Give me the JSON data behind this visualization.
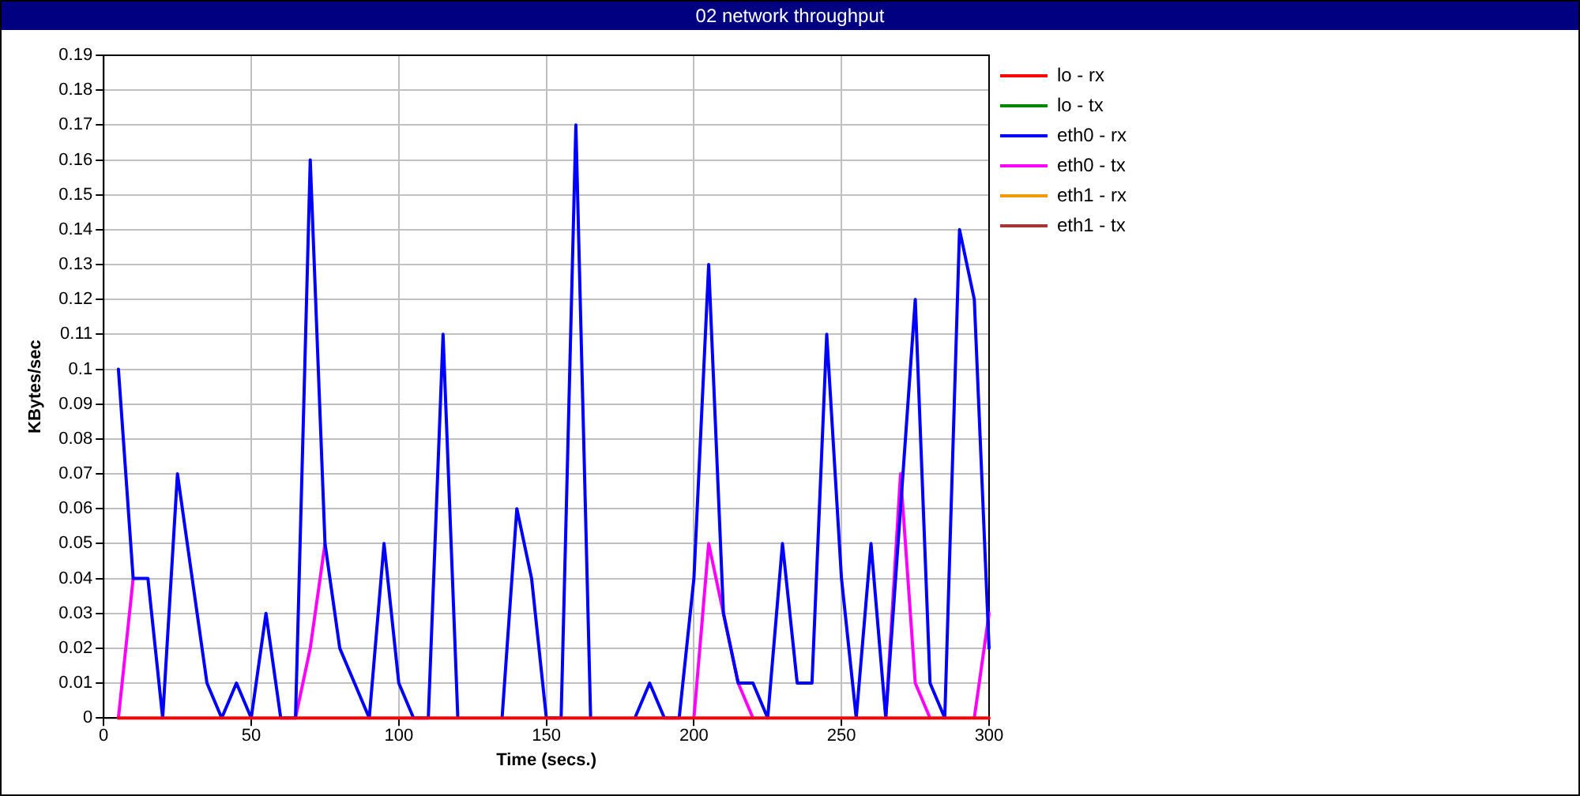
{
  "chart_data": {
    "type": "line",
    "title": "02 network throughput",
    "xlabel": "Time (secs.)",
    "ylabel": "KBytes/sec",
    "x": [
      5,
      10,
      15,
      20,
      25,
      30,
      35,
      40,
      45,
      50,
      55,
      60,
      65,
      70,
      75,
      80,
      85,
      90,
      95,
      100,
      105,
      110,
      115,
      120,
      125,
      130,
      135,
      140,
      145,
      150,
      155,
      160,
      165,
      170,
      175,
      180,
      185,
      190,
      195,
      200,
      205,
      210,
      215,
      220,
      225,
      230,
      235,
      240,
      245,
      250,
      255,
      260,
      265,
      270,
      275,
      280,
      285,
      290,
      295,
      300
    ],
    "series": [
      {
        "name": "lo - rx",
        "color": "#ff0000",
        "values": [
          0,
          0,
          0,
          0,
          0,
          0,
          0,
          0,
          0,
          0,
          0,
          0,
          0,
          0,
          0,
          0,
          0,
          0,
          0,
          0,
          0,
          0,
          0,
          0,
          0,
          0,
          0,
          0,
          0,
          0,
          0,
          0,
          0,
          0,
          0,
          0,
          0,
          0,
          0,
          0,
          0,
          0,
          0,
          0,
          0,
          0,
          0,
          0,
          0,
          0,
          0,
          0,
          0,
          0,
          0,
          0,
          0,
          0,
          0,
          0
        ]
      },
      {
        "name": "lo - tx",
        "color": "#008800",
        "values": [
          null,
          null,
          null,
          null,
          null,
          null,
          null,
          null,
          null,
          null,
          null,
          null,
          null,
          null,
          null,
          null,
          null,
          null,
          null,
          null,
          null,
          null,
          null,
          null,
          null,
          null,
          null,
          null,
          null,
          null,
          null,
          null,
          null,
          null,
          null,
          null,
          null,
          null,
          null,
          null,
          null,
          null,
          null,
          null,
          null,
          null,
          null,
          null,
          null,
          null,
          null,
          null,
          null,
          null,
          null,
          null,
          null,
          null,
          null,
          null
        ]
      },
      {
        "name": "eth0 - rx",
        "color": "#0000ff",
        "values": [
          0.1,
          0.04,
          0.04,
          0,
          0.07,
          0.04,
          0.01,
          0,
          0.01,
          0,
          0.03,
          0,
          0,
          0.16,
          0.05,
          0.02,
          0.01,
          0,
          0.05,
          0.01,
          0,
          0,
          0.11,
          0,
          null,
          null,
          0,
          0.06,
          0.04,
          0,
          0,
          0.17,
          0,
          null,
          null,
          0,
          0.01,
          0,
          0,
          0.04,
          0.13,
          0.03,
          0.01,
          0.01,
          0,
          0.05,
          0.01,
          0.01,
          0.11,
          0.04,
          0,
          0.05,
          0,
          0.06,
          0.12,
          0.01,
          0,
          0.14,
          0.12,
          0.02
        ]
      },
      {
        "name": "eth0 - tx",
        "color": "#ff00ff",
        "values": [
          0,
          0.04,
          null,
          null,
          null,
          null,
          null,
          null,
          null,
          null,
          null,
          null,
          0,
          0.02,
          0.05,
          null,
          null,
          null,
          null,
          null,
          null,
          null,
          null,
          null,
          null,
          null,
          null,
          null,
          null,
          null,
          null,
          null,
          null,
          null,
          null,
          null,
          null,
          null,
          null,
          0,
          0.05,
          0.03,
          0.01,
          0,
          null,
          null,
          null,
          null,
          null,
          null,
          null,
          null,
          0,
          0.07,
          0.01,
          0,
          null,
          null,
          0,
          0.03
        ]
      },
      {
        "name": "eth1 - rx",
        "color": "#ee9900",
        "values": [
          null,
          null,
          null,
          null,
          null,
          null,
          null,
          null,
          null,
          null,
          null,
          null,
          null,
          null,
          null,
          null,
          null,
          null,
          null,
          null,
          null,
          null,
          null,
          null,
          null,
          null,
          null,
          null,
          null,
          null,
          null,
          null,
          null,
          null,
          null,
          null,
          null,
          null,
          null,
          null,
          null,
          null,
          null,
          null,
          null,
          null,
          null,
          null,
          null,
          null,
          null,
          null,
          null,
          null,
          null,
          null,
          null,
          null,
          null,
          null
        ]
      },
      {
        "name": "eth1 - tx",
        "color": "#aa3333",
        "values": [
          null,
          null,
          null,
          null,
          null,
          null,
          null,
          null,
          null,
          null,
          null,
          null,
          null,
          null,
          null,
          null,
          null,
          null,
          null,
          null,
          null,
          null,
          null,
          null,
          null,
          null,
          null,
          null,
          null,
          null,
          null,
          null,
          null,
          null,
          null,
          null,
          null,
          null,
          null,
          null,
          null,
          null,
          null,
          null,
          null,
          null,
          null,
          null,
          null,
          null,
          null,
          null,
          null,
          null,
          null,
          null,
          null,
          null,
          null,
          null
        ]
      }
    ],
    "xlim": [
      0,
      300
    ],
    "xticks": [
      0,
      50,
      100,
      150,
      200,
      250,
      300
    ],
    "ylim": [
      0,
      0.19
    ],
    "yticks": [
      0,
      0.01,
      0.02,
      0.03,
      0.04,
      0.05,
      0.06,
      0.07,
      0.08,
      0.09,
      0.1,
      0.11,
      0.12,
      0.13,
      0.14,
      0.15,
      0.16,
      0.17,
      0.18,
      0.19
    ],
    "grid": true,
    "legend": "top right",
    "marker": "none"
  }
}
